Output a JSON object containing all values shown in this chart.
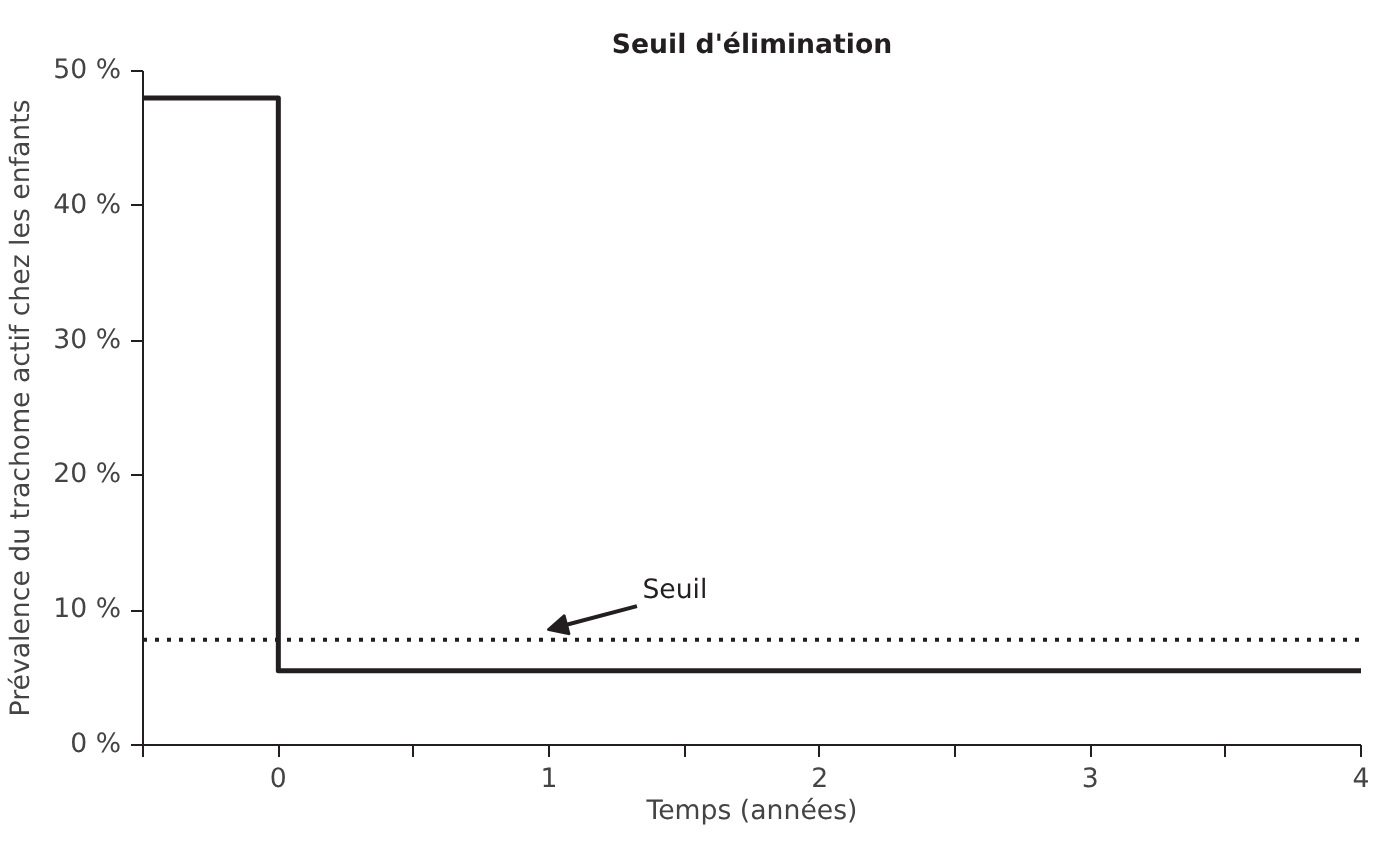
{
  "chart_data": {
    "type": "step",
    "title": "Seuil d'élimination",
    "xlabel": "Temps (années)",
    "ylabel": "Prévalence du trachome actif chez les enfants",
    "x": [
      -0.5,
      0,
      4
    ],
    "series": [
      {
        "color": "#231f20",
        "values": [
          48,
          5.5,
          5.5
        ]
      }
    ],
    "xlim": [
      -0.5,
      4
    ],
    "ylim": [
      0,
      50
    ],
    "xticks": [
      {
        "value": -0.5,
        "label": null
      },
      0,
      {
        "value": 0.5,
        "label": null
      },
      1,
      {
        "value": 1.5,
        "label": null
      },
      2,
      {
        "value": 2.5,
        "label": null
      },
      3,
      {
        "value": 3.5,
        "label": null
      },
      4
    ],
    "yticks": [
      {
        "value": 0,
        "label": "0 %"
      },
      {
        "value": 10,
        "label": "10 %"
      },
      {
        "value": 20,
        "label": "20 %"
      },
      {
        "value": 30,
        "label": "30 %"
      },
      {
        "value": 40,
        "label": "40 %"
      },
      {
        "value": 50,
        "label": "50 %"
      }
    ],
    "ref_lines": [
      {
        "axis": "y",
        "value": 7.8,
        "label": "Seuil",
        "color": "#231f20",
        "line_style": "dotted"
      }
    ],
    "grid": false,
    "marker": "none",
    "line_style": "solid"
  }
}
